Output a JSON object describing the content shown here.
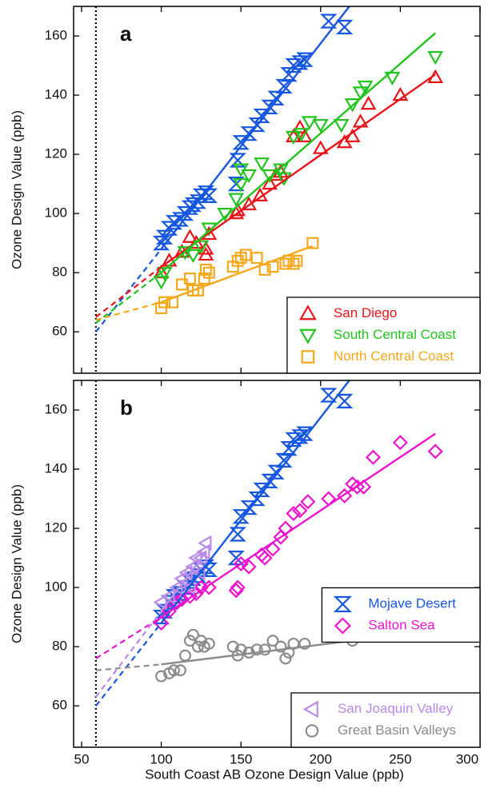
{
  "chart_data": [
    {
      "type": "scatter",
      "title": "a",
      "ylabel": "Ozone Design Value (ppb)",
      "xlim": [
        45,
        300
      ],
      "ylim": [
        46,
        170
      ],
      "xticks": [
        50,
        100,
        150,
        200,
        250,
        300
      ],
      "yticks": [
        60,
        80,
        100,
        120,
        140,
        160
      ],
      "show_xticklabels": false,
      "reference_x": 59,
      "series": [
        {
          "name": "Mojave Desert",
          "color": "#1657e0",
          "marker": "bowtie",
          "in_legend": false,
          "x": [
            100,
            102,
            105,
            108,
            112,
            115,
            118,
            120,
            123,
            125,
            128,
            130,
            147,
            148,
            150,
            155,
            160,
            163,
            168,
            172,
            177,
            180,
            183,
            187,
            190,
            205,
            215
          ],
          "values": [
            90,
            92,
            95,
            97,
            98,
            100,
            102,
            103,
            104,
            106,
            107,
            106,
            110,
            118,
            124,
            127,
            130,
            133,
            136,
            139,
            143,
            147,
            150,
            151,
            152,
            165,
            163
          ],
          "fit": {
            "x": [
              59,
              100,
              218
            ],
            "y": [
              60,
              88,
              170
            ]
          }
        },
        {
          "name": "San Diego",
          "color": "#e8141a",
          "marker": "up",
          "in_legend": true,
          "x": [
            100,
            105,
            113,
            118,
            122,
            128,
            128,
            130,
            147,
            148,
            155,
            162,
            168,
            172,
            175,
            183,
            187,
            190,
            200,
            215,
            220,
            225,
            230,
            250,
            272
          ],
          "values": [
            80,
            84,
            87,
            92,
            90,
            88,
            86,
            93,
            100,
            101,
            103,
            106,
            110,
            113,
            114,
            126,
            129,
            126,
            122,
            124,
            126,
            131,
            137,
            140,
            146
          ],
          "fit": {
            "x": [
              59,
              100,
              272
            ],
            "y": [
              65,
              82,
              147
            ]
          }
        },
        {
          "name": "South Central Coast",
          "color": "#22c41e",
          "marker": "down",
          "in_legend": true,
          "x": [
            100,
            102,
            115,
            120,
            125,
            130,
            140,
            147,
            150,
            150,
            155,
            163,
            168,
            175,
            177,
            183,
            188,
            193,
            200,
            213,
            220,
            225,
            228,
            245,
            272
          ],
          "values": [
            77,
            80,
            87,
            86,
            89,
            95,
            100,
            105,
            110,
            115,
            113,
            117,
            113,
            115,
            112,
            126,
            127,
            131,
            130,
            130,
            137,
            141,
            143,
            146,
            153
          ],
          "fit": {
            "x": [
              59,
              100,
              272
            ],
            "y": [
              63,
              80,
              161
            ]
          }
        },
        {
          "name": "North Central Coast",
          "color": "#f6a81c",
          "marker": "square",
          "in_legend": true,
          "x": [
            100,
            102,
            107,
            113,
            118,
            120,
            123,
            127,
            128,
            130,
            145,
            148,
            150,
            153,
            160,
            165,
            170,
            178,
            180,
            183,
            185,
            195
          ],
          "values": [
            68,
            70,
            70,
            76,
            78,
            74,
            74,
            78,
            81,
            80,
            82,
            84,
            85,
            86,
            85,
            81,
            82,
            83,
            84,
            83,
            84,
            90
          ],
          "fit": {
            "x": [
              59,
              100,
              195
            ],
            "y": [
              64,
              70,
              89
            ]
          }
        }
      ],
      "legend": "lower right"
    },
    {
      "type": "scatter",
      "title": "b",
      "ylabel": "Ozone Design Value (ppb)",
      "xlabel": "South Coast AB Ozone Design Value (ppb)",
      "xlim": [
        45,
        300
      ],
      "ylim": [
        46,
        170
      ],
      "xticks": [
        50,
        100,
        150,
        200,
        250,
        300
      ],
      "yticks": [
        60,
        80,
        100,
        120,
        140,
        160
      ],
      "show_xticklabels": true,
      "reference_x": 59,
      "series": [
        {
          "name": "Mojave Desert",
          "color": "#1657e0",
          "marker": "bowtie",
          "legend": "center right",
          "x": [
            100,
            102,
            105,
            108,
            112,
            115,
            118,
            120,
            123,
            125,
            128,
            130,
            147,
            148,
            150,
            155,
            160,
            163,
            168,
            172,
            177,
            180,
            183,
            187,
            190,
            205,
            215
          ],
          "values": [
            90,
            92,
            95,
            97,
            98,
            100,
            102,
            103,
            104,
            106,
            107,
            106,
            110,
            118,
            124,
            127,
            130,
            133,
            136,
            139,
            143,
            147,
            150,
            151,
            152,
            165,
            163
          ],
          "fit": {
            "x": [
              59,
              100,
              218
            ],
            "y": [
              60,
              88,
              170
            ]
          }
        },
        {
          "name": "Salton Sea",
          "color": "#ec14cf",
          "marker": "diamond",
          "legend": "center right",
          "x": [
            100,
            105,
            110,
            113,
            118,
            122,
            125,
            130,
            147,
            148,
            150,
            155,
            163,
            165,
            170,
            175,
            178,
            183,
            187,
            192,
            205,
            215,
            220,
            223,
            227,
            233,
            250,
            272
          ],
          "values": [
            88,
            92,
            95,
            96,
            97,
            98,
            100,
            100,
            99,
            100,
            108,
            107,
            111,
            110,
            113,
            117,
            120,
            125,
            126,
            129,
            130,
            131,
            135,
            134,
            134,
            144,
            149,
            146
          ],
          "fit": {
            "x": [
              59,
              100,
              272
            ],
            "y": [
              76,
              90,
              152
            ]
          }
        },
        {
          "name": "San Joaquin Valley",
          "color": "#b98be8",
          "marker": "left",
          "legend": "lower right",
          "x": [
            100,
            105,
            110,
            113,
            116,
            118,
            120,
            122,
            124,
            125,
            127,
            128
          ],
          "values": [
            95,
            97,
            100,
            103,
            105,
            100,
            107,
            110,
            105,
            110,
            112,
            115
          ],
          "fit": {
            "x": [
              59,
              100,
              128
            ],
            "y": [
              63,
              92,
              112
            ]
          }
        },
        {
          "name": "Great Basin Valleys",
          "color": "#8c8c8c",
          "marker": "circle",
          "legend": "lower right",
          "x": [
            100,
            105,
            108,
            112,
            115,
            118,
            120,
            123,
            125,
            127,
            130,
            145,
            148,
            150,
            155,
            160,
            165,
            170,
            175,
            178,
            180,
            183,
            190,
            205,
            215,
            220
          ],
          "values": [
            70,
            71,
            72,
            72,
            77,
            82,
            84,
            80,
            82,
            80,
            81,
            80,
            77,
            79,
            78,
            79,
            79,
            82,
            80,
            76,
            78,
            81,
            81,
            86,
            84,
            82
          ],
          "fit": {
            "x": [
              59,
              100,
              220
            ],
            "y": [
              72,
              74,
              82
            ]
          }
        }
      ]
    }
  ]
}
